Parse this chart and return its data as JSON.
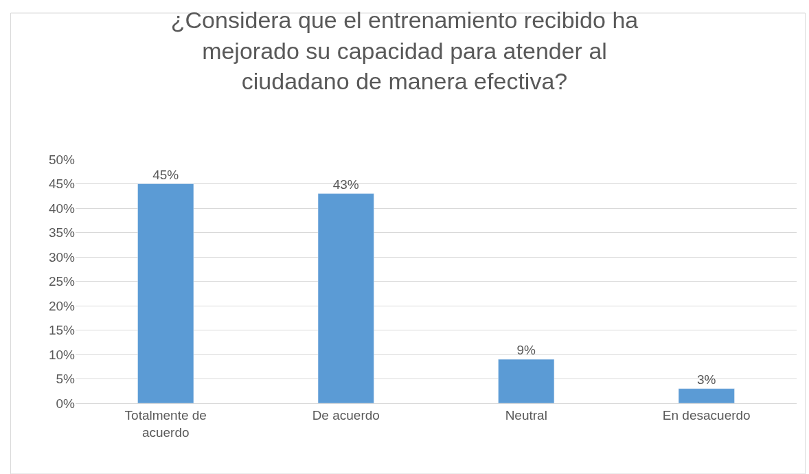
{
  "chart_data": {
    "type": "bar",
    "title": "¿Considera que el entrenamiento recibido ha mejorado su capacidad para atender al ciudadano de manera efectiva?",
    "categories": [
      "Totalmente de acuerdo",
      "De acuerdo",
      "Neutral",
      "En desacuerdo"
    ],
    "values": [
      45,
      43,
      9,
      3
    ],
    "value_labels": [
      "45%",
      "43%",
      "9%",
      "3%"
    ],
    "color": "#5b9bd5",
    "ylim": [
      0,
      50
    ],
    "yticks": [
      {
        "value": 0,
        "label": "0%"
      },
      {
        "value": 5,
        "label": "5%"
      },
      {
        "value": 10,
        "label": "10%"
      },
      {
        "value": 15,
        "label": "15%"
      },
      {
        "value": 20,
        "label": "20%"
      },
      {
        "value": 25,
        "label": "25%"
      },
      {
        "value": 30,
        "label": "30%"
      },
      {
        "value": 35,
        "label": "35%"
      },
      {
        "value": 40,
        "label": "40%"
      },
      {
        "value": 45,
        "label": "45%"
      },
      {
        "value": 50,
        "label": "50%"
      }
    ],
    "grid": "y"
  }
}
